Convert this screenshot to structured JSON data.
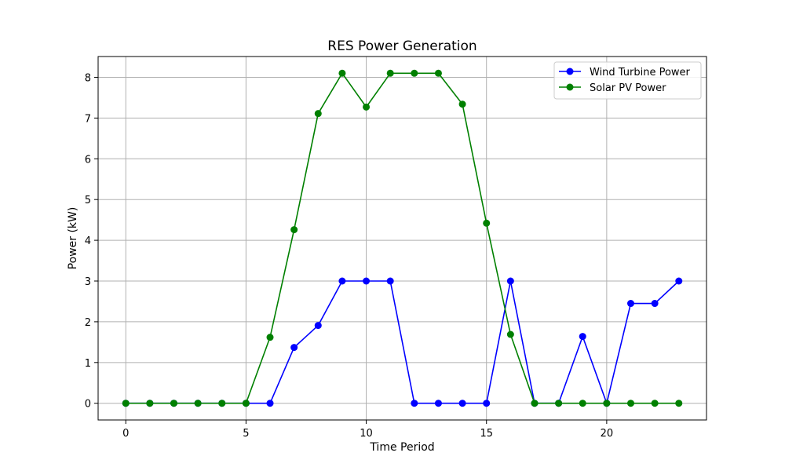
{
  "chart_data": {
    "type": "line",
    "title": "RES Power Generation",
    "xlabel": "Time Period",
    "ylabel": "Power (kW)",
    "xlim": [
      -1.15,
      24.15
    ],
    "ylim": [
      -0.41,
      8.51
    ],
    "xticks": [
      0,
      5,
      10,
      15,
      20
    ],
    "yticks": [
      0,
      1,
      2,
      3,
      4,
      5,
      6,
      7,
      8
    ],
    "grid": true,
    "legend_position": "top-right",
    "x": [
      0,
      1,
      2,
      3,
      4,
      5,
      6,
      7,
      8,
      9,
      10,
      11,
      12,
      13,
      14,
      15,
      16,
      17,
      18,
      19,
      20,
      21,
      22,
      23
    ],
    "series": [
      {
        "name": "Wind Turbine Power",
        "color": "#0000ff",
        "marker": "circle",
        "values": [
          0,
          0,
          0,
          0,
          0,
          0,
          0,
          1.37,
          1.91,
          3.0,
          3.0,
          3.0,
          0,
          0,
          0,
          0,
          3.0,
          0,
          0,
          1.64,
          0,
          2.45,
          2.45,
          3.0
        ]
      },
      {
        "name": "Solar PV Power",
        "color": "#008000",
        "marker": "circle",
        "values": [
          0,
          0,
          0,
          0,
          0,
          0,
          1.62,
          4.26,
          7.11,
          8.1,
          7.27,
          8.1,
          8.1,
          8.1,
          7.34,
          4.42,
          1.69,
          0,
          0,
          0,
          0,
          0,
          0,
          0
        ]
      }
    ]
  }
}
